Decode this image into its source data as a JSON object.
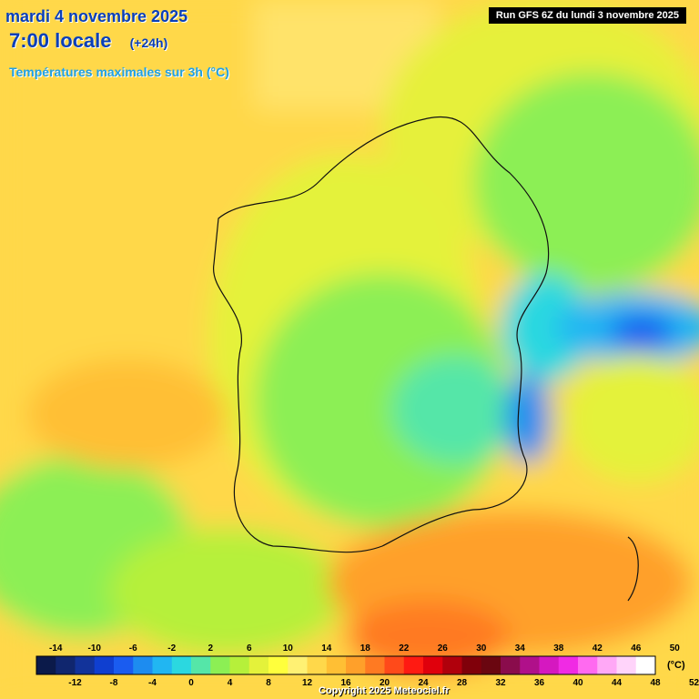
{
  "header": {
    "date": "mardi 4 novembre 2025",
    "time": "7:00 locale",
    "lead": "(+24h)",
    "subtitle": "Températures maximales sur 3h (°C)",
    "run": "Run GFS 6Z du lundi 3 novembre 2025"
  },
  "legend": {
    "unit": "(°C)",
    "upper_ticks": [
      "-14",
      "-10",
      "-6",
      "-2",
      "2",
      "6",
      "10",
      "14",
      "18",
      "22",
      "26",
      "30",
      "34",
      "38",
      "42",
      "46",
      "50"
    ],
    "lower_ticks": [
      "-12",
      "-8",
      "-4",
      "0",
      "4",
      "8",
      "12",
      "16",
      "20",
      "24",
      "28",
      "32",
      "36",
      "40",
      "44",
      "48",
      "52"
    ],
    "colors": [
      "#0b1a4a",
      "#10266e",
      "#12339a",
      "#0f3fd0",
      "#1a5cf0",
      "#1d8cf0",
      "#21b6f2",
      "#2bd8e0",
      "#55e6a8",
      "#8cef54",
      "#b6f03a",
      "#e4f23a",
      "#ffff3c",
      "#fff173",
      "#ffd84a",
      "#ffbf34",
      "#ffa02a",
      "#ff7a22",
      "#ff4a1a",
      "#ff1a12",
      "#e0000c",
      "#b0000c",
      "#80000a",
      "#6a0610",
      "#8a0c4c",
      "#b0108a",
      "#d518c0",
      "#f02ae4",
      "#ff6af0",
      "#ffa8f6",
      "#ffd4fa",
      "#ffffff"
    ]
  },
  "copyright": "Copyright 2025 Meteociel.fr"
}
